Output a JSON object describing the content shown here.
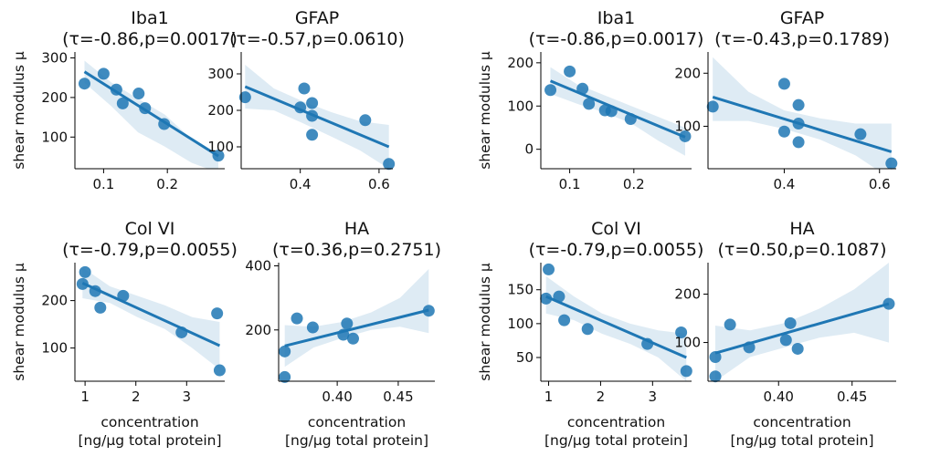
{
  "figure": {
    "y_axis_label": "shear modulus μ",
    "x_axis_label_line1": "concentration",
    "x_axis_label_line2": "[ng/μg total protein]"
  },
  "chart_data": [
    {
      "type": "scatter",
      "group": "left",
      "title": "Iba1",
      "stats": "(τ=-0.86,p=0.0017)",
      "xlabel": "",
      "ylabel": "shear modulus μ",
      "x": [
        0.07,
        0.1,
        0.12,
        0.13,
        0.155,
        0.165,
        0.195,
        0.28
      ],
      "y": [
        235,
        260,
        220,
        185,
        210,
        173,
        133,
        53
      ],
      "fit": {
        "x": [
          0.07,
          0.28
        ],
        "y": [
          265,
          52
        ]
      },
      "band": {
        "lo": [
          237,
          178,
          112,
          76,
          35,
          10
        ],
        "hi": [
          293,
          238,
          197,
          157,
          95,
          57
        ]
      },
      "xlim": [
        0.055,
        0.29
      ],
      "ylim": [
        20,
        315
      ],
      "xticks": [
        0.1,
        0.2
      ],
      "xtick_labels": [
        "0.1",
        "0.2"
      ],
      "yticks": [
        100,
        200,
        300
      ],
      "ytick_labels": [
        "100",
        "200",
        "300"
      ]
    },
    {
      "type": "scatter",
      "group": "left",
      "title": "GFAP",
      "stats": "(τ=-0.57,p=0.0610)",
      "xlabel": "",
      "ylabel": "",
      "x": [
        0.26,
        0.4,
        0.41,
        0.43,
        0.43,
        0.43,
        0.565,
        0.625
      ],
      "y": [
        236,
        208,
        260,
        220,
        185,
        133,
        173,
        53
      ],
      "fit": {
        "x": [
          0.26,
          0.625
        ],
        "y": [
          265,
          100
        ]
      },
      "band": {
        "lo": [
          205,
          200,
          165,
          128,
          90,
          40
        ],
        "hi": [
          325,
          260,
          225,
          195,
          170,
          160
        ]
      },
      "xlim": [
        0.25,
        0.635
      ],
      "ylim": [
        40,
        360
      ],
      "xticks": [
        0.4,
        0.6
      ],
      "xtick_labels": [
        "0.4",
        "0.6"
      ],
      "yticks": [
        100,
        200,
        300
      ],
      "ytick_labels": [
        "100",
        "200",
        "300"
      ]
    },
    {
      "type": "scatter",
      "group": "left",
      "title": "Col VI",
      "stats": "(τ=-0.79,p=0.0055)",
      "xlabel": "concentration [ng/μg total protein]",
      "ylabel": "shear modulus μ",
      "x": [
        0.95,
        1.0,
        1.2,
        1.3,
        1.75,
        2.9,
        3.6,
        3.65
      ],
      "y": [
        235,
        260,
        220,
        185,
        210,
        133,
        173,
        53
      ],
      "fit": {
        "x": [
          0.95,
          3.65
        ],
        "y": [
          237,
          105
        ]
      },
      "band": {
        "lo": [
          205,
          195,
          165,
          140,
          100,
          55
        ],
        "hi": [
          270,
          230,
          210,
          190,
          165,
          155
        ]
      },
      "xlim": [
        0.8,
        3.75
      ],
      "ylim": [
        30,
        280
      ],
      "xticks": [
        1,
        2,
        3
      ],
      "xtick_labels": [
        "1",
        "2",
        "3"
      ],
      "yticks": [
        100,
        200
      ],
      "ytick_labels": [
        "100",
        "200"
      ]
    },
    {
      "type": "scatter",
      "group": "left",
      "title": "HA",
      "stats": "(τ=0.36,p=0.2751)",
      "xlabel": "concentration [ng/μg total protein]",
      "ylabel": "",
      "x": [
        0.357,
        0.357,
        0.367,
        0.38,
        0.405,
        0.408,
        0.413,
        0.475
      ],
      "y": [
        133,
        53,
        236,
        208,
        185,
        220,
        173,
        260
      ],
      "fit": {
        "x": [
          0.357,
          0.475
        ],
        "y": [
          150,
          262
        ]
      },
      "band": {
        "lo": [
          85,
          145,
          175,
          200,
          210,
          190
        ],
        "hi": [
          215,
          210,
          225,
          255,
          300,
          390
        ]
      },
      "xlim": [
        0.352,
        0.48
      ],
      "ylim": [
        40,
        410
      ],
      "xticks": [
        0.4,
        0.45
      ],
      "xtick_labels": [
        "0.40",
        "0.45"
      ],
      "yticks": [
        200,
        400
      ],
      "ytick_labels": [
        "200",
        "400"
      ]
    },
    {
      "type": "scatter",
      "group": "right",
      "title": "Iba1",
      "stats": "(τ=-0.86,p=0.0017)",
      "xlabel": "",
      "ylabel": "shear modulus μ",
      "x": [
        0.07,
        0.1,
        0.12,
        0.13,
        0.155,
        0.165,
        0.195,
        0.28
      ],
      "y": [
        137,
        180,
        140,
        105,
        90,
        88,
        70,
        30
      ],
      "fit": {
        "x": [
          0.07,
          0.28
        ],
        "y": [
          158,
          28
        ]
      },
      "band": {
        "lo": [
          128,
          105,
          85,
          60,
          20,
          -15
        ],
        "hi": [
          190,
          150,
          125,
          100,
          75,
          50
        ]
      },
      "xlim": [
        0.055,
        0.29
      ],
      "ylim": [
        -45,
        225
      ],
      "xticks": [
        0.1,
        0.2
      ],
      "xtick_labels": [
        "0.1",
        "0.2"
      ],
      "yticks": [
        0,
        100,
        200
      ],
      "ytick_labels": [
        "0",
        "100",
        "200"
      ]
    },
    {
      "type": "scatter",
      "group": "right",
      "title": "GFAP",
      "stats": "(τ=-0.43,p=0.1789)",
      "xlabel": "",
      "ylabel": "",
      "x": [
        0.25,
        0.4,
        0.4,
        0.43,
        0.43,
        0.43,
        0.56,
        0.625
      ],
      "y": [
        137,
        90,
        180,
        140,
        105,
        70,
        85,
        30
      ],
      "fit": {
        "x": [
          0.25,
          0.625
        ],
        "y": [
          155,
          52
        ]
      },
      "band": {
        "lo": [
          110,
          110,
          95,
          75,
          45,
          0
        ],
        "hi": [
          230,
          165,
          130,
          115,
          105,
          105
        ]
      },
      "xlim": [
        0.24,
        0.635
      ],
      "ylim": [
        20,
        240
      ],
      "xticks": [
        0.4,
        0.6
      ],
      "xtick_labels": [
        "0.4",
        "0.6"
      ],
      "yticks": [
        100,
        200
      ],
      "ytick_labels": [
        "100",
        "200"
      ]
    },
    {
      "type": "scatter",
      "group": "right",
      "title": "Col VI",
      "stats": "(τ=-0.79,p=0.0055)",
      "xlabel": "concentration [ng/μg total protein]",
      "ylabel": "shear modulus μ",
      "x": [
        0.95,
        1.0,
        1.2,
        1.3,
        1.75,
        2.9,
        3.55,
        3.65
      ],
      "y": [
        137,
        180,
        140,
        105,
        92,
        70,
        87,
        30
      ],
      "fit": {
        "x": [
          0.95,
          3.65
        ],
        "y": [
          140,
          50
        ]
      },
      "band": {
        "lo": [
          115,
          105,
          85,
          70,
          50,
          15
        ],
        "hi": [
          170,
          140,
          115,
          100,
          90,
          85
        ]
      },
      "xlim": [
        0.85,
        3.75
      ],
      "ylim": [
        15,
        190
      ],
      "xticks": [
        1,
        2,
        3
      ],
      "xtick_labels": [
        "1",
        "2",
        "3"
      ],
      "yticks": [
        50,
        100,
        150
      ],
      "ytick_labels": [
        "50",
        "100",
        "150"
      ]
    },
    {
      "type": "scatter",
      "group": "right",
      "title": "HA",
      "stats": "(τ=0.50,p=0.1087)",
      "xlabel": "concentration [ng/μg total protein]",
      "ylabel": "",
      "x": [
        0.357,
        0.357,
        0.367,
        0.38,
        0.405,
        0.408,
        0.413,
        0.475
      ],
      "y": [
        70,
        30,
        137,
        90,
        105,
        140,
        87,
        180
      ],
      "fit": {
        "x": [
          0.357,
          0.475
        ],
        "y": [
          78,
          180
        ]
      },
      "band": {
        "lo": [
          20,
          70,
          90,
          110,
          120,
          100
        ],
        "hi": [
          135,
          125,
          140,
          170,
          210,
          265
        ]
      },
      "xlim": [
        0.352,
        0.48
      ],
      "ylim": [
        20,
        265
      ],
      "xticks": [
        0.4,
        0.45
      ],
      "xtick_labels": [
        "0.40",
        "0.45"
      ],
      "yticks": [
        100,
        200
      ],
      "ytick_labels": [
        "100",
        "200"
      ]
    }
  ]
}
